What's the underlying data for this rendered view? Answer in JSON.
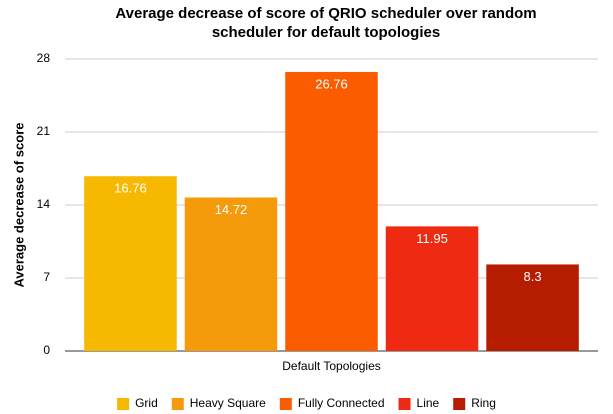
{
  "chart_data": {
    "type": "bar",
    "title": "Average decrease of score of QRIO scheduler over random scheduler for default topologies",
    "x_label": "Default Topologies",
    "y_label": "Average decrease of score",
    "categories": [
      "Default Topologies"
    ],
    "series": [
      {
        "name": "Grid",
        "color": "#f6b800",
        "values": [
          16.76
        ]
      },
      {
        "name": "Heavy Square",
        "color": "#f59a0a",
        "values": [
          14.72
        ]
      },
      {
        "name": "Fully Connected",
        "color": "#fb5c00",
        "values": [
          26.76
        ]
      },
      {
        "name": "Line",
        "color": "#ee2b12",
        "values": [
          11.95
        ]
      },
      {
        "name": "Ring",
        "color": "#b51c00",
        "values": [
          8.3
        ]
      }
    ],
    "ylim": [
      0,
      28
    ],
    "yticks": [
      0,
      7,
      14,
      21,
      28
    ],
    "grid": true,
    "legend": "bottom"
  }
}
